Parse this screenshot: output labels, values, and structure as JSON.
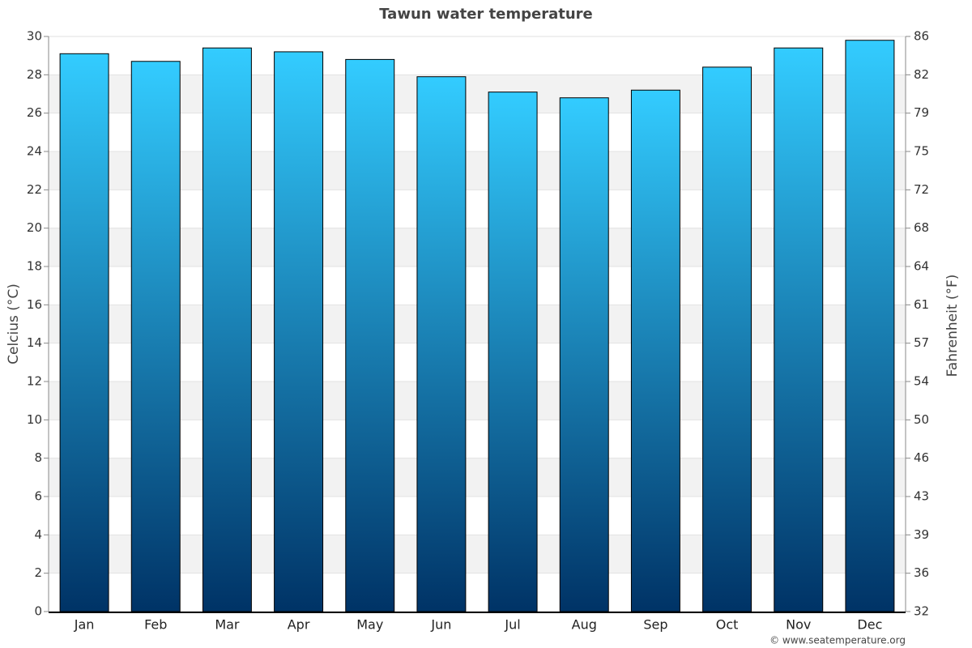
{
  "chart_data": {
    "type": "bar",
    "title": "Tawun water temperature",
    "categories": [
      "Jan",
      "Feb",
      "Mar",
      "Apr",
      "May",
      "Jun",
      "Jul",
      "Aug",
      "Sep",
      "Oct",
      "Nov",
      "Dec"
    ],
    "values": [
      29.1,
      28.7,
      29.4,
      29.2,
      28.8,
      27.9,
      27.1,
      26.8,
      27.2,
      28.4,
      29.4,
      29.8
    ],
    "gradient": [
      "#33ccff",
      "#003366"
    ],
    "ylabel": "Celcius (°C)",
    "y2label": "Fahrenheit (°F)",
    "ylim": [
      0,
      30
    ],
    "yticks": [
      0,
      2,
      4,
      6,
      8,
      10,
      12,
      14,
      16,
      18,
      20,
      22,
      24,
      26,
      28,
      30
    ],
    "y2lim": [
      32,
      86
    ],
    "y2ticks": [
      32,
      {
        "value": 35.6,
        "label": "36"
      },
      {
        "value": 39.2,
        "label": "39"
      },
      {
        "value": 42.8,
        "label": "43"
      },
      {
        "value": 46.4,
        "label": "46"
      },
      50,
      {
        "value": 53.6,
        "label": "54"
      },
      {
        "value": 57.2,
        "label": "57"
      },
      {
        "value": 60.8,
        "label": "61"
      },
      {
        "value": 64.4,
        "label": "64"
      },
      68,
      {
        "value": 71.6,
        "label": "72"
      },
      {
        "value": 75.2,
        "label": "75"
      },
      {
        "value": 78.8,
        "label": "79"
      },
      {
        "value": 82.4,
        "label": "82"
      },
      86
    ],
    "grid": true,
    "source": "© www.seatemperature.org"
  }
}
